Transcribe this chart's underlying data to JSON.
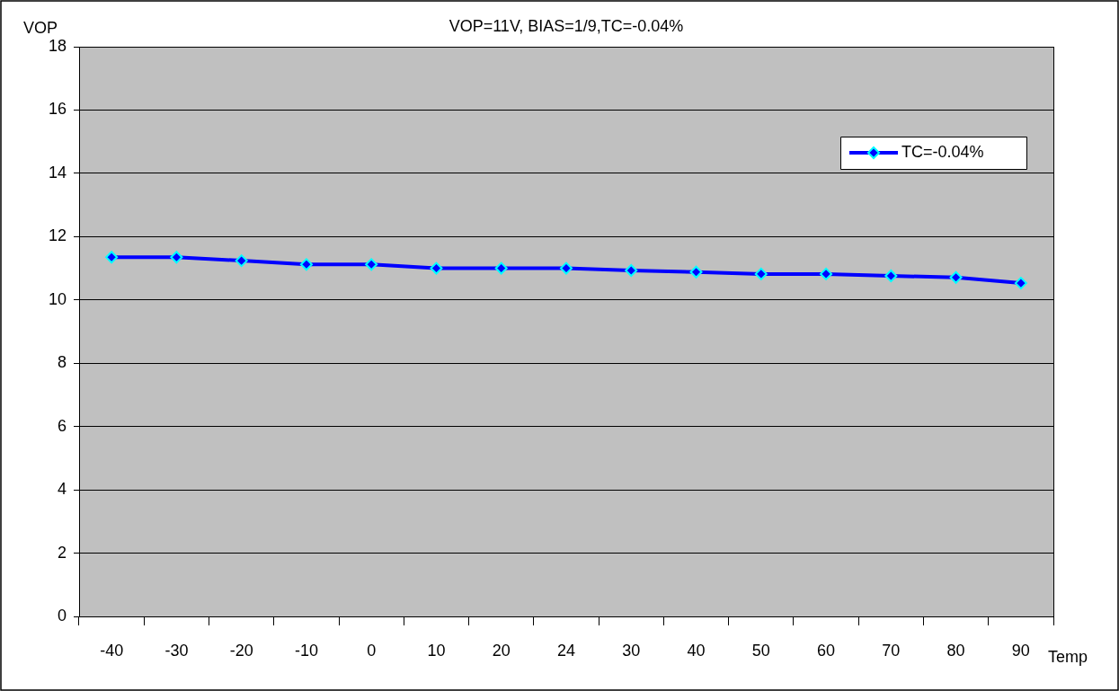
{
  "chart_data": {
    "type": "line",
    "title": "VOP=11V, BIAS=1/9,TC=-0.04%",
    "xlabel": "Temp",
    "ylabel": "VOP",
    "categories": [
      "-40",
      "-30",
      "-20",
      "-10",
      "0",
      "10",
      "20",
      "24",
      "30",
      "40",
      "50",
      "60",
      "70",
      "80",
      "90"
    ],
    "series": [
      {
        "name": "TC=-0.04%",
        "color": "#0000ff",
        "values": [
          11.35,
          11.35,
          11.24,
          11.12,
          11.12,
          11.0,
          11.0,
          11.0,
          10.93,
          10.88,
          10.82,
          10.82,
          10.76,
          10.71,
          10.53
        ]
      }
    ],
    "ylim": [
      0,
      18
    ],
    "yticks": [
      0,
      2,
      4,
      6,
      8,
      10,
      12,
      14,
      16,
      18
    ],
    "grid": "y",
    "legend": "top right",
    "marker": "diamond",
    "line_style": "solid"
  }
}
